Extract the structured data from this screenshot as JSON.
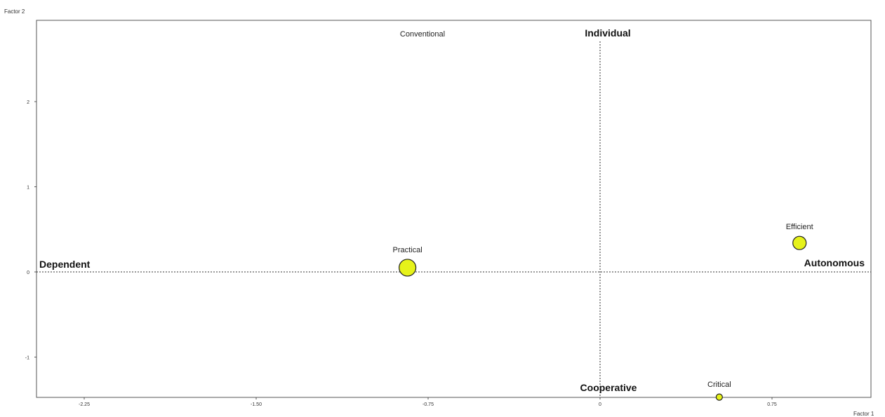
{
  "chart_data": {
    "type": "scatter",
    "xlabel": "Factor 1",
    "ylabel": "Factor 2",
    "xlim": [
      -2.3,
      1.2
    ],
    "ylim": [
      -1.5,
      2.95
    ],
    "x_ticks": [
      -2.25,
      -1.5,
      -0.75,
      0,
      0.75
    ],
    "x_tick_labels": [
      "-2.25",
      "-1.50",
      "-0.75",
      "0",
      "0.75"
    ],
    "y_ticks": [
      -1,
      0,
      1,
      2
    ],
    "y_tick_labels": [
      "-1",
      "0",
      "1",
      "2"
    ],
    "reference_lines": {
      "x": 0,
      "y": 0,
      "style": "dotted"
    },
    "points": [
      {
        "label": "Practical",
        "x": -0.84,
        "y": 0.05,
        "size": 3
      },
      {
        "label": "Efficient",
        "x": 0.87,
        "y": 0.34,
        "size": 2
      },
      {
        "label": "Critical",
        "x": 0.52,
        "y": -1.47,
        "size": 1
      }
    ],
    "pole_labels": {
      "top": "Individual",
      "bottom": "Cooperative",
      "left": "Dependent",
      "right": "Autonomous",
      "top_secondary": "Conventional"
    },
    "colors": {
      "point_fill": "#e6f21a",
      "point_stroke": "#222222",
      "frame": "#555555"
    }
  }
}
